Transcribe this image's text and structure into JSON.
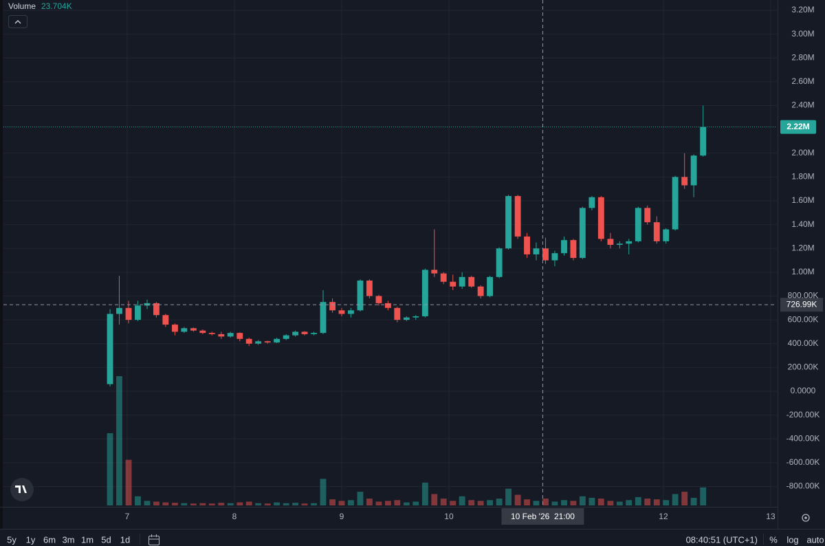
{
  "chart_data": {
    "type": "candlestick",
    "volume_legend": {
      "name": "Volume",
      "value": "23.704K"
    },
    "x": [
      6.84,
      6.926,
      7.013,
      7.099,
      7.186,
      7.272,
      7.358,
      7.445,
      7.531,
      7.618,
      7.704,
      7.79,
      7.877,
      7.963,
      8.05,
      8.136,
      8.222,
      8.309,
      8.395,
      8.482,
      8.568,
      8.654,
      8.741,
      8.827,
      8.914,
      9.0,
      9.086,
      9.173,
      9.259,
      9.346,
      9.432,
      9.518,
      9.605,
      9.691,
      9.778,
      9.864,
      9.95,
      10.037,
      10.123,
      10.21,
      10.296,
      10.382,
      10.469,
      10.555,
      10.642,
      10.728,
      10.814,
      10.901,
      10.987,
      11.074,
      11.16,
      11.246,
      11.333,
      11.419,
      11.506,
      11.592,
      11.678,
      11.765,
      11.851,
      11.938,
      12.024,
      12.11,
      12.197,
      12.283,
      12.37
    ],
    "open": [
      60000,
      650000,
      700000,
      600000,
      720000,
      740000,
      640000,
      560000,
      500000,
      530000,
      510000,
      490000,
      480000,
      460000,
      490000,
      440000,
      400000,
      420000,
      410000,
      440000,
      470000,
      500000,
      480000,
      490000,
      750000,
      680000,
      650000,
      680000,
      930000,
      800000,
      740000,
      700000,
      600000,
      620000,
      630000,
      1020000,
      990000,
      920000,
      880000,
      960000,
      880000,
      800000,
      960000,
      1200000,
      1640000,
      1300000,
      1150000,
      1200000,
      1100000,
      1160000,
      1270000,
      1120000,
      1540000,
      1630000,
      1280000,
      1230000,
      1240000,
      1260000,
      1540000,
      1420000,
      1260000,
      1360000,
      1800000,
      1730000,
      1980000
    ],
    "high": [
      690000,
      970000,
      760000,
      760000,
      770000,
      750000,
      650000,
      570000,
      540000,
      535000,
      520000,
      500000,
      500000,
      500000,
      495000,
      450000,
      430000,
      425000,
      450000,
      480000,
      510000,
      505000,
      500000,
      850000,
      780000,
      700000,
      700000,
      940000,
      940000,
      810000,
      760000,
      710000,
      630000,
      640000,
      1030000,
      1360000,
      1000000,
      980000,
      1000000,
      970000,
      890000,
      970000,
      1210000,
      1650000,
      1650000,
      1330000,
      1250000,
      1290000,
      1180000,
      1300000,
      1280000,
      1550000,
      1640000,
      1640000,
      1330000,
      1260000,
      1280000,
      1550000,
      1560000,
      1470000,
      1370000,
      1810000,
      2000000,
      1990000,
      2400000
    ],
    "low": [
      40000,
      560000,
      570000,
      590000,
      690000,
      620000,
      540000,
      470000,
      490000,
      500000,
      480000,
      470000,
      440000,
      450000,
      420000,
      380000,
      390000,
      400000,
      405000,
      430000,
      460000,
      470000,
      470000,
      480000,
      660000,
      630000,
      620000,
      670000,
      780000,
      720000,
      680000,
      580000,
      590000,
      600000,
      620000,
      960000,
      900000,
      850000,
      860000,
      870000,
      780000,
      790000,
      950000,
      1190000,
      1280000,
      1120000,
      1100000,
      1070000,
      1050000,
      1140000,
      1100000,
      1110000,
      1520000,
      1260000,
      1200000,
      1200000,
      1150000,
      1250000,
      1400000,
      1240000,
      1240000,
      1350000,
      1700000,
      1630000,
      1970000
    ],
    "close": [
      650000,
      700000,
      600000,
      720000,
      740000,
      640000,
      560000,
      500000,
      530000,
      510000,
      490000,
      480000,
      460000,
      490000,
      440000,
      400000,
      420000,
      410000,
      440000,
      470000,
      500000,
      480000,
      490000,
      750000,
      680000,
      650000,
      680000,
      930000,
      800000,
      740000,
      700000,
      600000,
      620000,
      630000,
      1020000,
      990000,
      920000,
      880000,
      960000,
      880000,
      800000,
      960000,
      1200000,
      1640000,
      1300000,
      1150000,
      1200000,
      1100000,
      1160000,
      1270000,
      1120000,
      1540000,
      1630000,
      1280000,
      1230000,
      1240000,
      1260000,
      1540000,
      1420000,
      1260000,
      1360000,
      1800000,
      1730000,
      1980000,
      2220000
    ],
    "volume": [
      95000,
      170000,
      60000,
      12000,
      6000,
      5000,
      4000,
      3500,
      3000,
      2500,
      3000,
      2500,
      3500,
      3000,
      4000,
      5000,
      3000,
      2500,
      4000,
      3000,
      3500,
      2500,
      3000,
      35000,
      8000,
      6000,
      7000,
      18000,
      9000,
      5000,
      6000,
      7000,
      4000,
      5000,
      30000,
      15000,
      9000,
      6000,
      12000,
      7000,
      6000,
      7000,
      9000,
      22000,
      14000,
      8000,
      6000,
      9000,
      5000,
      7000,
      6000,
      12000,
      10000,
      9000,
      6000,
      5000,
      7000,
      11000,
      9000,
      8000,
      7000,
      15000,
      18000,
      10000,
      23704
    ],
    "colors": {
      "up": "#26a69a",
      "down": "#ef5350"
    },
    "xlim": [
      5.846,
      13.058
    ],
    "xticks": [
      7,
      8,
      9,
      10,
      12,
      13
    ],
    "ylim": [
      -958800,
      3286600
    ],
    "yticks": [
      {
        "value": 3200000,
        "label": "3.20M"
      },
      {
        "value": 3000000,
        "label": "3.00M"
      },
      {
        "value": 2800000,
        "label": "2.80M"
      },
      {
        "value": 2600000,
        "label": "2.60M"
      },
      {
        "value": 2400000,
        "label": "2.40M"
      },
      {
        "value": 2000000,
        "label": "2.00M"
      },
      {
        "value": 1800000,
        "label": "1.80M"
      },
      {
        "value": 1600000,
        "label": "1.60M"
      },
      {
        "value": 1400000,
        "label": "1.40M"
      },
      {
        "value": 1200000,
        "label": "1.20M"
      },
      {
        "value": 1000000,
        "label": "1.00M"
      },
      {
        "value": 800000,
        "label": "800.00K"
      },
      {
        "value": 600000,
        "label": "600.00K"
      },
      {
        "value": 400000,
        "label": "400.00K"
      },
      {
        "value": 200000,
        "label": "200.00K"
      },
      {
        "value": 0,
        "label": "0.0000"
      },
      {
        "value": -200000,
        "label": "-200.00K"
      },
      {
        "value": -400000,
        "label": "-400.00K"
      },
      {
        "value": -600000,
        "label": "-600.00K"
      },
      {
        "value": -800000,
        "label": "-800.00K"
      }
    ],
    "grid": true,
    "log_scale": false,
    "last_price": {
      "value": 2220000,
      "label": "2.22M"
    },
    "crosshair": {
      "x": 10.875,
      "x_label": "10 Feb '26  21:00",
      "y": 726990,
      "y_label": "726.99K"
    }
  },
  "toolbar": {
    "ranges": [
      "5y",
      "1y",
      "6m",
      "3m",
      "1m",
      "5d",
      "1d"
    ],
    "clock": "08:40:51 (UTC+1)",
    "options": [
      "%",
      "log",
      "auto"
    ]
  }
}
